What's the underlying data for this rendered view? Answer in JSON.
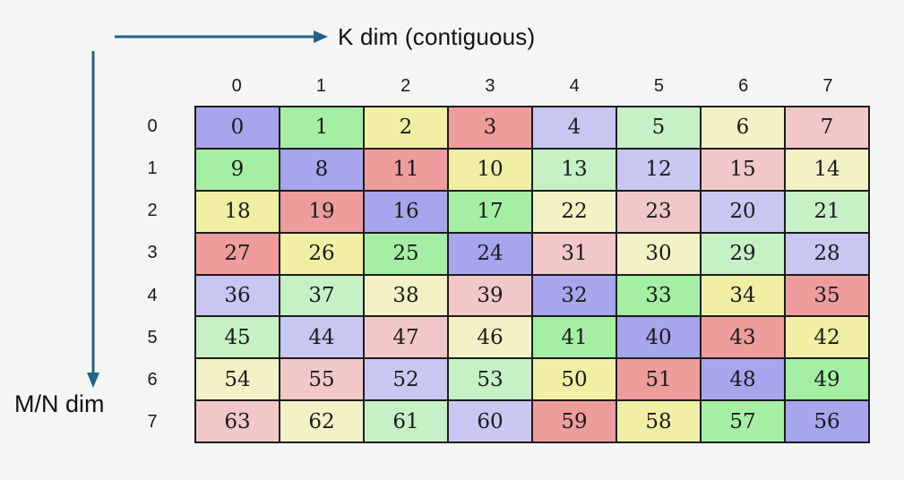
{
  "labels": {
    "k_dim": "K dim (contiguous)",
    "mn_dim": "M/N dim"
  },
  "grid": {
    "col_headers": [
      "0",
      "1",
      "2",
      "3",
      "4",
      "5",
      "6",
      "7"
    ],
    "row_headers": [
      "0",
      "1",
      "2",
      "3",
      "4",
      "5",
      "6",
      "7"
    ],
    "values": [
      [
        0,
        1,
        2,
        3,
        4,
        5,
        6,
        7
      ],
      [
        9,
        8,
        11,
        10,
        13,
        12,
        15,
        14
      ],
      [
        18,
        19,
        16,
        17,
        22,
        23,
        20,
        21
      ],
      [
        27,
        26,
        25,
        24,
        31,
        30,
        29,
        28
      ],
      [
        36,
        37,
        38,
        39,
        32,
        33,
        34,
        35
      ],
      [
        45,
        44,
        47,
        46,
        41,
        40,
        43,
        42
      ],
      [
        54,
        55,
        52,
        53,
        50,
        51,
        48,
        49
      ],
      [
        63,
        62,
        61,
        60,
        59,
        58,
        57,
        56
      ]
    ],
    "palette_by_value_mod8": {
      "0": "#a7a5ec",
      "1": "#a4efa4",
      "2": "#f0efa4",
      "3": "#ee9c9c",
      "4": "#c8c7f2",
      "5": "#c6f0c6",
      "6": "#f3f2c6",
      "7": "#f2c7c7"
    }
  },
  "colors": {
    "arrow": "#226384",
    "cell_border": "#1c1c1c",
    "background": "#f4f5f5",
    "text": "#1a1a1a"
  }
}
